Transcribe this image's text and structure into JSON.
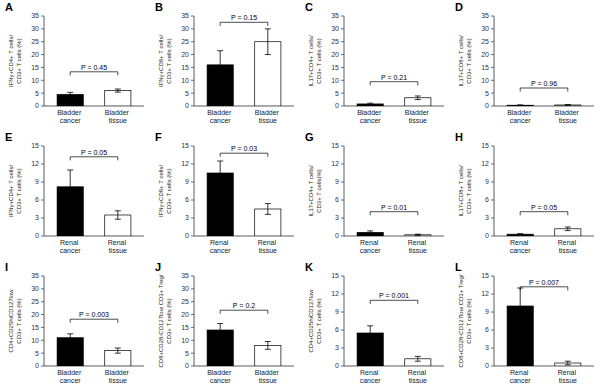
{
  "chart_data": [
    {
      "type": "bar",
      "title": "A",
      "categories": [
        "Bladder cancer",
        "Bladder tissue"
      ],
      "values": [
        4.5,
        6.0
      ],
      "errors": [
        0.8,
        0.6
      ],
      "colors": [
        "#000000",
        "#ffffff"
      ],
      "ylabel": "IFNγ+CD4+ T cells/\nCD3+ T cells (%)",
      "ylim": [
        0,
        35
      ],
      "yticks": [
        0,
        5,
        10,
        15,
        20,
        25,
        30,
        35
      ],
      "annotations": [
        {
          "text": "P = 0.45",
          "y": 13.3
        }
      ],
      "grid": false
    },
    {
      "type": "bar",
      "title": "B",
      "categories": [
        "Bladder cancer",
        "Bladder tissue"
      ],
      "values": [
        16.0,
        25.0
      ],
      "errors": [
        5.5,
        5.0
      ],
      "colors": [
        "#000000",
        "#ffffff"
      ],
      "ylabel": "IFNγ+CD8+ T cells/\nCD3+ T cells (%)",
      "ylim": [
        0,
        35
      ],
      "yticks": [
        0,
        5,
        10,
        15,
        20,
        25,
        30,
        35
      ],
      "annotations": [
        {
          "text": "P = 0.15",
          "y": 32.55
        }
      ],
      "grid": false
    },
    {
      "type": "bar",
      "title": "C",
      "categories": [
        "Bladder cancer",
        "Bladder tissue"
      ],
      "values": [
        0.8,
        3.2
      ],
      "errors": [
        0.3,
        0.7
      ],
      "colors": [
        "#000000",
        "#ffffff"
      ],
      "ylabel": "IL17+CD4+ T cells/\nCD3+ T cells (%)",
      "ylim": [
        0,
        35
      ],
      "yticks": [
        0,
        5,
        10,
        15,
        20,
        25,
        30,
        35
      ],
      "annotations": [
        {
          "text": "P = 0.21",
          "y": 9.45
        }
      ],
      "grid": false
    },
    {
      "type": "bar",
      "title": "D",
      "categories": [
        "Bladder cancer",
        "Bladder tissue"
      ],
      "values": [
        0.3,
        0.4
      ],
      "errors": [
        0.15,
        0.15
      ],
      "colors": [
        "#000000",
        "#ffffff"
      ],
      "ylabel": "IL17+CD8+ T cells/\nCD3+ T cells (%)",
      "ylim": [
        0,
        35
      ],
      "yticks": [
        0,
        5,
        10,
        15,
        20,
        25,
        30,
        35
      ],
      "annotations": [
        {
          "text": "P = 0.96",
          "y": 7
        }
      ],
      "grid": false
    },
    {
      "type": "bar",
      "title": "E",
      "categories": [
        "Renal cancer",
        "Renal tissue"
      ],
      "values": [
        8.2,
        3.5
      ],
      "errors": [
        2.8,
        0.7
      ],
      "colors": [
        "#000000",
        "#ffffff"
      ],
      "ylabel": "IFNγ+CD4+ T cells/\nCD3+ T cells (%)",
      "ylim": [
        0,
        15
      ],
      "yticks": [
        0,
        3,
        6,
        9,
        12,
        15
      ],
      "annotations": [
        {
          "text": "P = 0.05",
          "y": 13.2
        }
      ],
      "grid": false
    },
    {
      "type": "bar",
      "title": "F",
      "categories": [
        "Renal cancer",
        "Renal tissue"
      ],
      "values": [
        10.5,
        4.5
      ],
      "errors": [
        2.0,
        0.9
      ],
      "colors": [
        "#000000",
        "#ffffff"
      ],
      "ylabel": "IFNγ+CD8+ T cells/\nCD3+ T cells (%)",
      "ylim": [
        0,
        15
      ],
      "yticks": [
        0,
        3,
        6,
        9,
        12,
        15
      ],
      "annotations": [
        {
          "text": "P = 0.03",
          "y": 13.8
        }
      ],
      "grid": false
    },
    {
      "type": "bar",
      "title": "G",
      "categories": [
        "Renal cancer",
        "Renal tissue"
      ],
      "values": [
        0.6,
        0.2
      ],
      "errors": [
        0.25,
        0.1
      ],
      "colors": [
        "#000000",
        "#ffffff"
      ],
      "ylabel": "IL17+CD4+ T cells/\nCD3+ T cells(%)",
      "ylim": [
        0,
        15
      ],
      "yticks": [
        0,
        3,
        6,
        9,
        12,
        15
      ],
      "annotations": [
        {
          "text": "P = 0.01",
          "y": 4.05
        }
      ],
      "grid": false
    },
    {
      "type": "bar",
      "title": "H",
      "categories": [
        "Renal cancer",
        "Renal tissue"
      ],
      "values": [
        0.3,
        1.2
      ],
      "errors": [
        0.1,
        0.3
      ],
      "colors": [
        "#000000",
        "#ffffff"
      ],
      "ylabel": "IL17+CD8+ T cells/\nCD3+ T cells (%)",
      "ylim": [
        0,
        15
      ],
      "yticks": [
        0,
        3,
        6,
        9,
        12,
        15
      ],
      "annotations": [
        {
          "text": "P = 0.05",
          "y": 4.05
        }
      ],
      "grid": false
    },
    {
      "type": "bar",
      "title": "I",
      "categories": [
        "Bladder cancer",
        "Bladder tissue"
      ],
      "values": [
        11.0,
        6.0
      ],
      "errors": [
        1.5,
        1.0
      ],
      "colors": [
        "#000000",
        "#ffffff"
      ],
      "ylabel": "CD4+CD25hiCD127low\nCD3+ T cells (%)",
      "ylim": [
        0,
        35
      ],
      "yticks": [
        0,
        5,
        10,
        15,
        20,
        25,
        30,
        35
      ],
      "annotations": [
        {
          "text": "P = 0.003",
          "y": 18.2
        }
      ],
      "grid": false
    },
    {
      "type": "bar",
      "title": "J",
      "categories": [
        "Bladder cancer",
        "Bladder tissue"
      ],
      "values": [
        14.0,
        8.0
      ],
      "errors": [
        2.5,
        1.5
      ],
      "colors": [
        "#000000",
        "#ffffff"
      ],
      "ylabel": "CD8+CD28-CD127low CD3+ Treg/\nCD3+ T cells (%)",
      "ylim": [
        0,
        35
      ],
      "yticks": [
        0,
        5,
        10,
        15,
        20,
        25,
        30,
        35
      ],
      "annotations": [
        {
          "text": "P = 0.2",
          "y": 21.7
        }
      ],
      "grid": false
    },
    {
      "type": "bar",
      "title": "K",
      "categories": [
        "Renal cancer",
        "Renal tissue"
      ],
      "values": [
        5.5,
        1.2
      ],
      "errors": [
        1.2,
        0.4
      ],
      "colors": [
        "#000000",
        "#ffffff"
      ],
      "ylabel": "CD4+CD25hiCD127low\nCD3+ T cells (%)",
      "ylim": [
        0,
        15
      ],
      "yticks": [
        0,
        3,
        6,
        9,
        12,
        15
      ],
      "annotations": [
        {
          "text": "P = 0.001",
          "y": 10.95
        }
      ],
      "grid": false
    },
    {
      "type": "bar",
      "title": "L",
      "categories": [
        "Renal cancer",
        "Renal tissue"
      ],
      "values": [
        10.0,
        0.5
      ],
      "errors": [
        3.0,
        0.3
      ],
      "colors": [
        "#000000",
        "#ffffff"
      ],
      "ylabel": "CD8+CD28-CD127low CD3+ Treg/\nCD3+ T cells (%)",
      "ylim": [
        0,
        15
      ],
      "yticks": [
        0,
        3,
        6,
        9,
        12,
        15
      ],
      "annotations": [
        {
          "text": "P = 0.007",
          "y": 13.2
        }
      ],
      "grid": false
    }
  ]
}
